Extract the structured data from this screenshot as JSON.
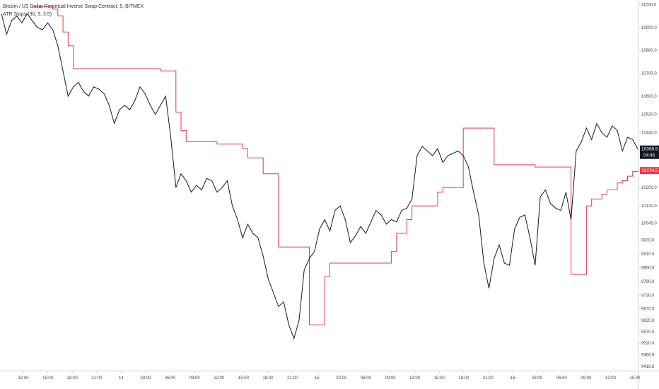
{
  "legend": {
    "symbol_title": "Bitcoin / US Dollar Perpetual Inverse Swap Contract, 5, BITMEX",
    "indicator_title": "ATR Stops (30, 9, 3.5)"
  },
  "price_badge": {
    "value": "10368.5",
    "countdown": "04:45"
  },
  "stop_badge": {
    "value": "10274.5"
  },
  "colors": {
    "price": "#131722",
    "stop": "#f23645",
    "badge_dark": "#131722",
    "badge_red": "#f23645"
  },
  "chart_data": {
    "type": "line",
    "ylim": [
      9400,
      11020
    ],
    "y_ticks": [
      "11000.0",
      "10900.0",
      "10800.0",
      "10700.0",
      "10600.0",
      "10520.0",
      "10440.0",
      "10360.0",
      "10280.0",
      "10200.0",
      "10120.0",
      "10045.0",
      "9970.0",
      "9910.0",
      "9850.0",
      "9790.0",
      "9730.0",
      "9670.0",
      "9620.0",
      "9570.0",
      "9520.0",
      "9468.8",
      "9418.8"
    ],
    "x_ticks": [
      "12:00",
      "15:00",
      "18:00",
      "21:00",
      "14",
      "03:00",
      "06:00",
      "09:00",
      "12:00",
      "15:00",
      "18:00",
      "21:00",
      "15",
      "03:00",
      "06:00",
      "09:00",
      "12:00",
      "15:00",
      "18:00",
      "21:00",
      "16",
      "03:00",
      "06:00",
      "09:00",
      "12:00",
      "15:00"
    ],
    "series": [
      {
        "values": [
          10960,
          10870,
          10930,
          10950,
          10920,
          10960,
          10930,
          10900,
          10890,
          10920,
          10890,
          10820,
          10710,
          10600,
          10640,
          10660,
          10620,
          10600,
          10640,
          10630,
          10610,
          10560,
          10480,
          10540,
          10560,
          10540,
          10580,
          10640,
          10610,
          10560,
          10520,
          10560,
          10600,
          10420,
          10200,
          10260,
          10230,
          10180,
          10210,
          10190,
          10240,
          10230,
          10180,
          10200,
          10230,
          10120,
          10060,
          9980,
          10040,
          10000,
          9980,
          9900,
          9800,
          9740,
          9680,
          9700,
          9600,
          9540,
          9620,
          9840,
          9890,
          9920,
          10020,
          10060,
          10010,
          10100,
          10120,
          10060,
          9960,
          9990,
          10030,
          10000,
          10050,
          10100,
          10080,
          10040,
          10060,
          10050,
          10100,
          10110,
          10150,
          10340,
          10380,
          10360,
          10340,
          10370,
          10310,
          10340,
          10350,
          10360,
          10340,
          10290,
          10180,
          10080,
          9870,
          9760,
          9890,
          9950,
          9870,
          9860,
          10020,
          10070,
          10080,
          9980,
          9860,
          10160,
          10190,
          10130,
          10110,
          10100,
          10180,
          10060,
          10360,
          10400,
          10460,
          10410,
          10480,
          10440,
          10420,
          10470,
          10450,
          10360,
          10420,
          10410,
          10368.5
        ],
        "color": "#131722"
      },
      {
        "values": [
          null,
          null,
          null,
          null,
          null,
          null,
          10990,
          10990,
          10990,
          10990,
          10980,
          10950,
          10880,
          10820,
          10720,
          10720,
          10720,
          10720,
          10720,
          10720,
          10720,
          10720,
          10720,
          10720,
          10720,
          10720,
          10720,
          10720,
          10720,
          10720,
          10720,
          10710,
          10710,
          10710,
          10530,
          10450,
          10400,
          10400,
          10400,
          10400,
          10400,
          10400,
          10390,
          10390,
          10390,
          10390,
          10390,
          10370,
          10330,
          10330,
          10330,
          10260,
          10260,
          10260,
          9940,
          9940,
          9940,
          9940,
          9940,
          9940,
          9600,
          9600,
          9600,
          9810,
          9870,
          9870,
          9870,
          9870,
          9870,
          9870,
          9870,
          9870,
          9870,
          9870,
          9870,
          9870,
          9920,
          10000,
          10000,
          10060,
          10120,
          10120,
          10120,
          10120,
          10120,
          10180,
          10200,
          10200,
          10200,
          10200,
          10460,
          10460,
          10460,
          10460,
          10460,
          10460,
          10300,
          10300,
          10300,
          10300,
          10300,
          10300,
          10300,
          10300,
          10290,
          10290,
          10290,
          10290,
          10290,
          10290,
          10290,
          9820,
          9820,
          9820,
          10120,
          10150,
          10150,
          10170,
          10190,
          10190,
          10220,
          10230,
          10250,
          10270,
          10274.5
        ],
        "color": "#f23645"
      }
    ]
  }
}
